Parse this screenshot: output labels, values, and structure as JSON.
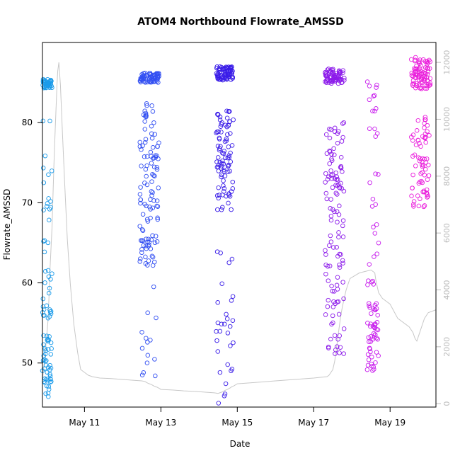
{
  "chart_data": {
    "type": "scatter",
    "title": "ATOM4 Northbound Flowrate_AMSSD",
    "xlabel": "Date",
    "ylabel": "Flowrate_AMSSD",
    "x_unit": "days after May 10 00:00",
    "xlim": [
      -0.1,
      10.2
    ],
    "ylim": [
      44.5,
      90
    ],
    "y2lim": [
      -120,
      12700
    ],
    "x_ticks": [
      {
        "value": 1.0,
        "label": "May 11"
      },
      {
        "value": 3.0,
        "label": "May 13"
      },
      {
        "value": 5.0,
        "label": "May 15"
      },
      {
        "value": 7.0,
        "label": "May 17"
      },
      {
        "value": 9.0,
        "label": "May 19"
      }
    ],
    "y_ticks": [
      50,
      60,
      70,
      80
    ],
    "y2_ticks": [
      0,
      2000,
      4000,
      6000,
      8000,
      10000,
      12000
    ],
    "secondary_series": {
      "name": "secondary trace (grey line, right axis)",
      "color": "#c8c8c8",
      "x": [
        -0.1,
        0.0,
        0.05,
        0.1,
        0.15,
        0.2,
        0.23,
        0.25,
        0.28,
        0.3,
        0.33,
        0.37,
        0.42,
        0.48,
        0.55,
        0.63,
        0.72,
        0.82,
        0.9,
        1.0,
        1.1,
        1.2,
        1.4,
        1.7,
        2.0,
        2.3,
        2.5,
        2.58,
        2.62,
        2.66,
        2.7,
        2.74,
        2.78,
        2.82,
        2.86,
        2.9,
        2.94,
        2.98,
        3.0,
        3.3,
        3.6,
        3.9,
        4.2,
        4.4,
        4.5,
        4.54,
        4.58,
        4.62,
        4.66,
        4.7,
        4.74,
        4.78,
        4.82,
        4.86,
        4.9,
        4.94,
        5.0,
        5.5,
        6.0,
        6.5,
        7.0,
        7.35,
        7.4,
        7.45,
        7.5,
        7.55,
        7.6,
        7.65,
        7.7,
        7.75,
        7.8,
        7.85,
        7.9,
        7.95,
        8.2,
        8.5,
        8.6,
        8.62,
        8.65,
        8.7,
        8.8,
        9.0,
        9.2,
        9.5,
        9.6,
        9.65,
        9.7,
        9.75,
        9.8,
        9.85,
        9.9,
        10.0,
        10.2
      ],
      "values": [
        800,
        2200,
        3000,
        4800,
        6200,
        8400,
        9500,
        10200,
        11200,
        11700,
        12000,
        11200,
        9600,
        7800,
        5800,
        4200,
        2800,
        1800,
        1200,
        1100,
        1000,
        950,
        900,
        880,
        850,
        820,
        800,
        780,
        750,
        720,
        700,
        680,
        650,
        620,
        600,
        580,
        550,
        520,
        500,
        480,
        450,
        430,
        400,
        380,
        360,
        380,
        400,
        420,
        450,
        480,
        500,
        530,
        560,
        600,
        620,
        650,
        700,
        750,
        800,
        850,
        900,
        950,
        1000,
        1100,
        1200,
        1500,
        2000,
        2500,
        3000,
        3400,
        3700,
        4000,
        4200,
        4400,
        4600,
        4700,
        4600,
        4400,
        4200,
        3900,
        3700,
        3500,
        3000,
        2700,
        2500,
        2300,
        2200,
        2400,
        2600,
        2800,
        3000,
        3200,
        3300
      ]
    }
  }
}
